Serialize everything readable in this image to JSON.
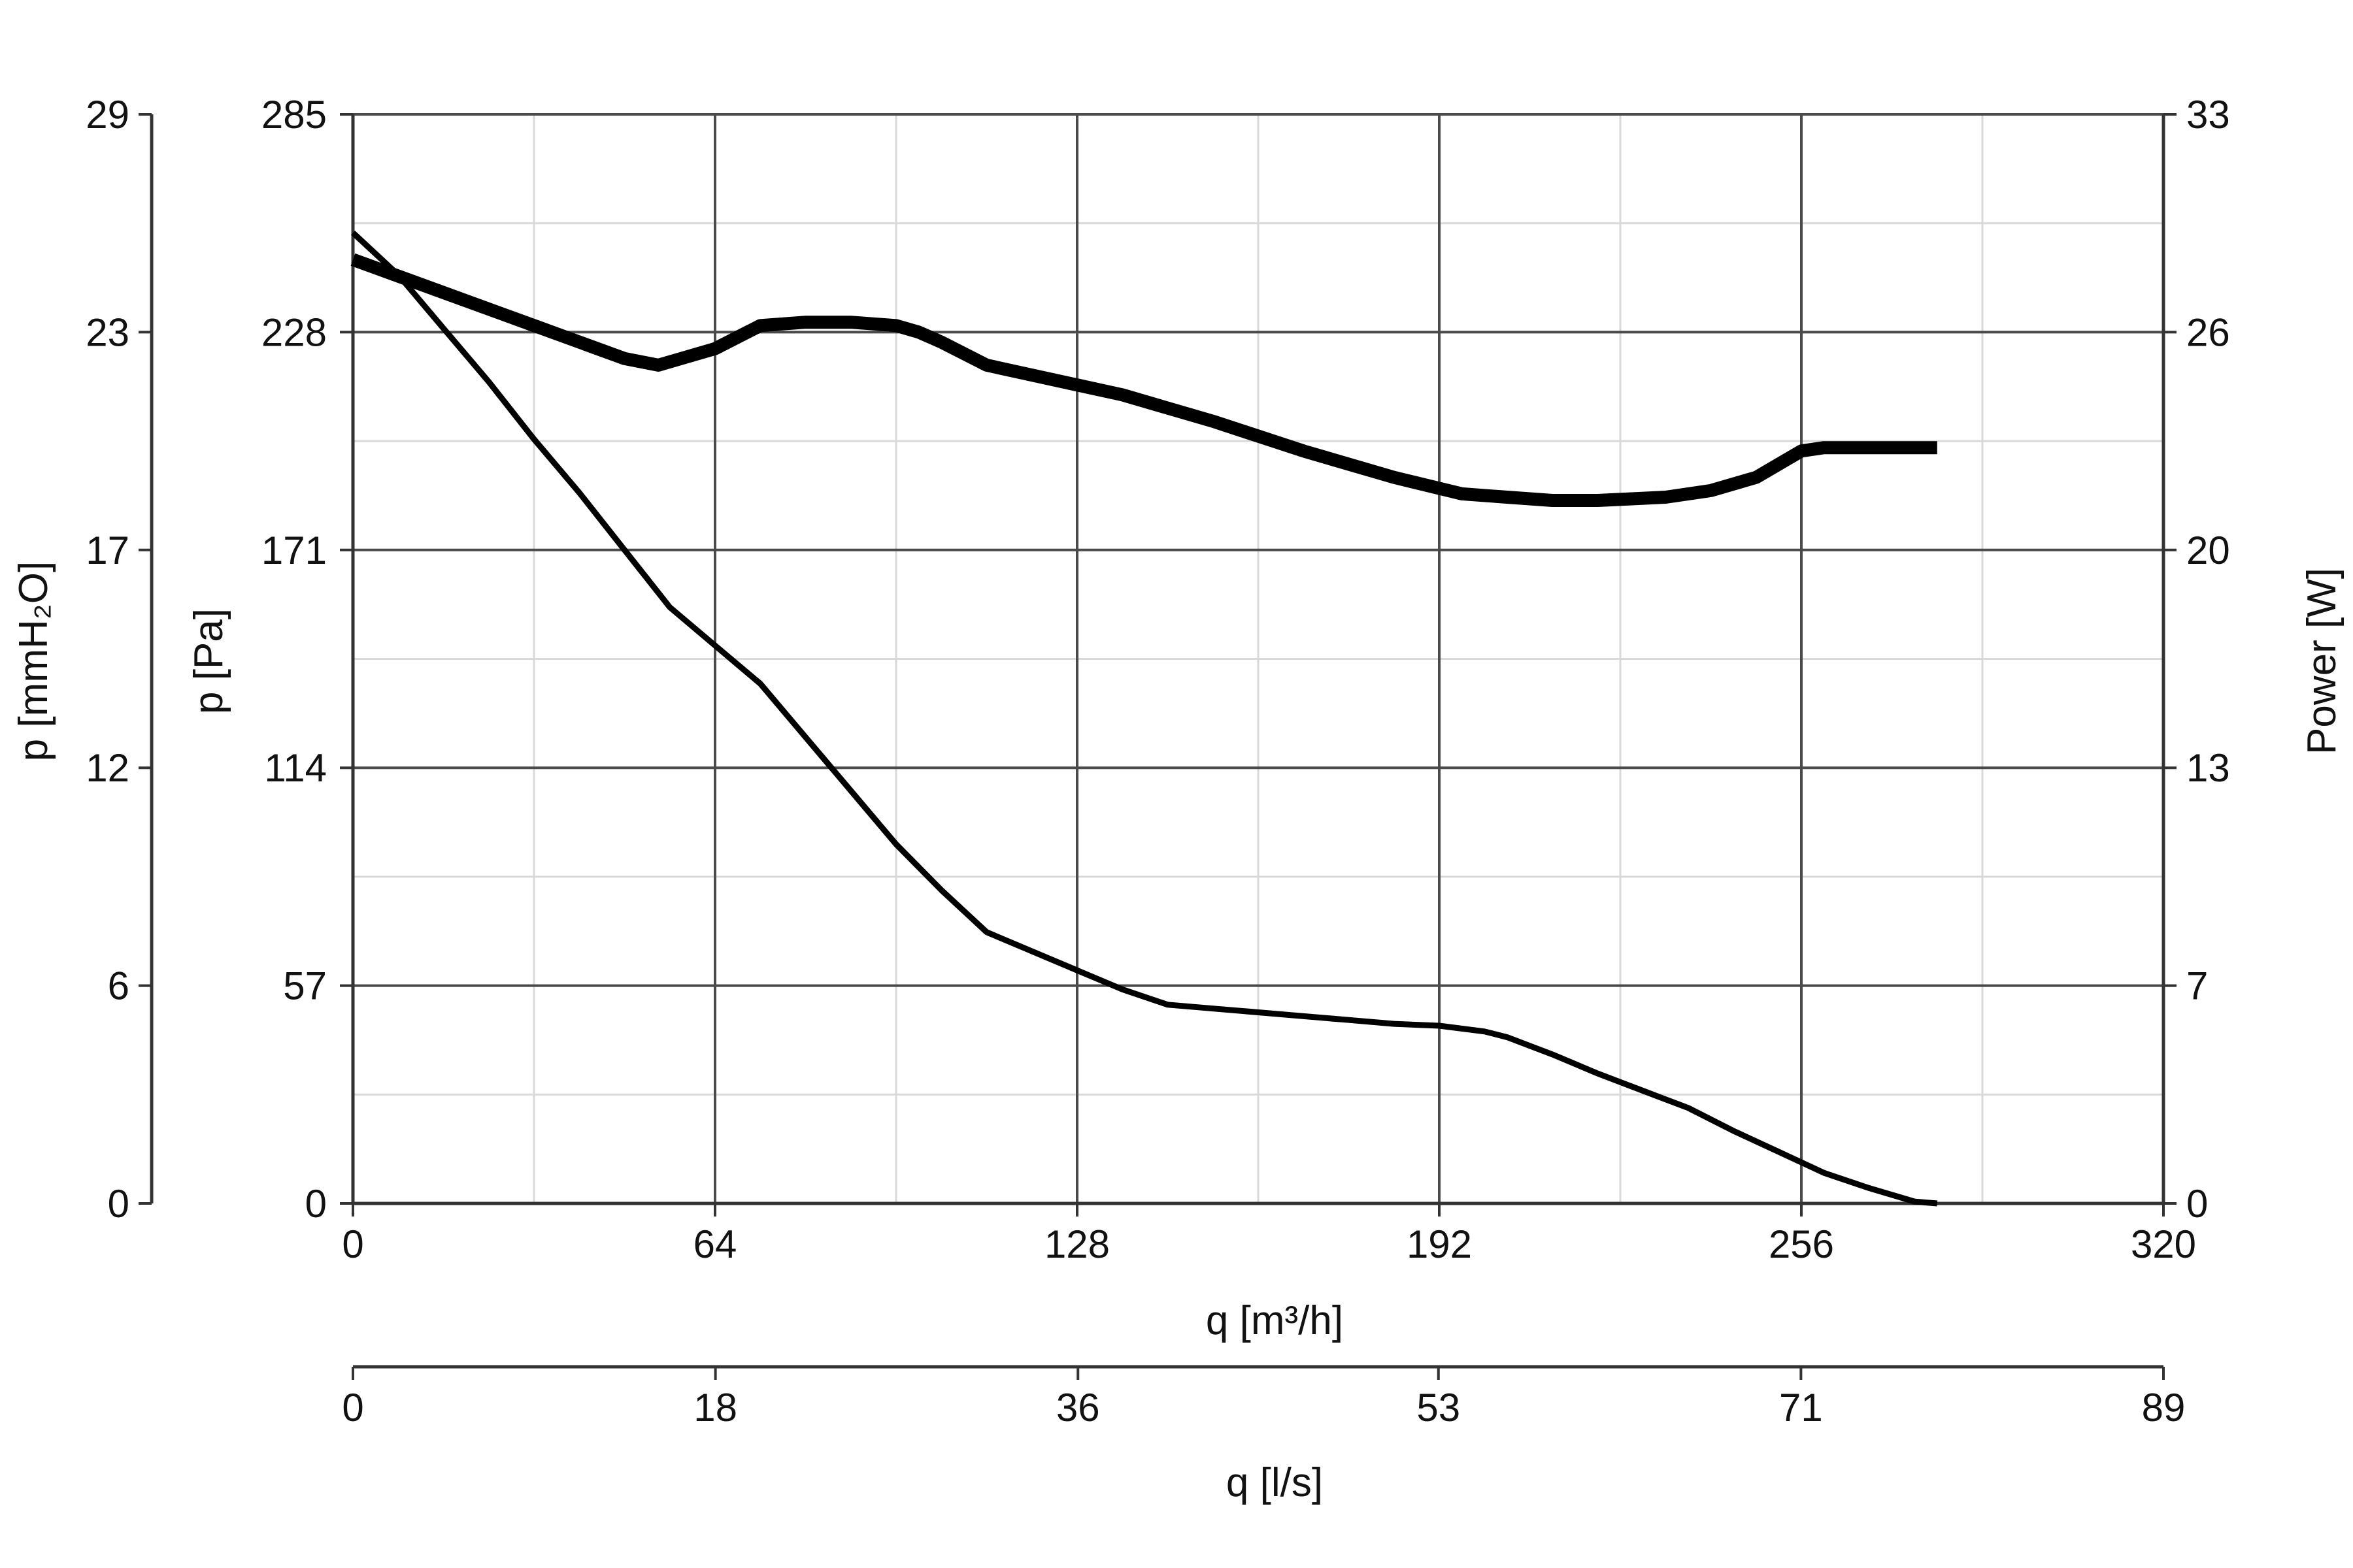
{
  "chart_data": {
    "type": "line",
    "title": "",
    "grid": true,
    "legend": "none",
    "x_axis": {
      "label": "q [m³/h]",
      "range": [
        0,
        320
      ],
      "ticks": [
        "0",
        "64",
        "128",
        "192",
        "256",
        "320"
      ],
      "tick_values": [
        0,
        64,
        128,
        192,
        256,
        320
      ]
    },
    "x2_axis": {
      "label": "q [l/s]",
      "range": [
        0,
        88.9
      ],
      "ticks": [
        "0",
        "18",
        "36",
        "53",
        "71",
        "89"
      ],
      "tick_values": [
        0,
        17.8,
        35.6,
        53.3,
        71.1,
        88.9
      ]
    },
    "y_axis": {
      "label": "p [Pa]",
      "range": [
        0,
        285
      ],
      "ticks": [
        "0",
        "57",
        "114",
        "171",
        "228",
        "285"
      ],
      "tick_values": [
        0,
        57,
        114,
        171,
        228,
        285
      ]
    },
    "y2_axis": {
      "label": "p [mmH₂O]",
      "range": [
        0,
        29
      ],
      "ticks": [
        "0",
        "6",
        "12",
        "17",
        "23",
        "29"
      ],
      "tick_values": [
        0,
        5.8,
        11.6,
        17.4,
        23.2,
        29
      ]
    },
    "y3_axis": {
      "label": "Power [W]",
      "range": [
        0,
        33
      ],
      "ticks": [
        "0",
        "7",
        "13",
        "20",
        "26",
        "33"
      ],
      "tick_values": [
        0,
        6.6,
        13.2,
        19.8,
        26.4,
        33
      ]
    },
    "series": [
      {
        "axis": "pressure",
        "x": [
          0,
          8,
          16,
          24,
          32,
          40,
          48,
          56,
          64,
          72,
          80,
          88,
          96,
          104,
          112,
          120,
          128,
          136,
          144,
          152,
          160,
          168,
          176,
          184,
          192,
          200,
          204,
          212,
          220,
          228,
          236,
          244,
          252,
          260,
          268,
          276,
          280
        ],
        "y": [
          254,
          243,
          229,
          215,
          200,
          186,
          171,
          156,
          146,
          136,
          122,
          108,
          94,
          82,
          71,
          66,
          61,
          56,
          52,
          51,
          50,
          49,
          48,
          47,
          46.5,
          45,
          43.5,
          39,
          34,
          29.5,
          25,
          19,
          13.5,
          8,
          4,
          0.5,
          0
        ]
      },
      {
        "axis": "power",
        "x": [
          0,
          16,
          32,
          48,
          54,
          64,
          72,
          80,
          88,
          96,
          100,
          104,
          112,
          120,
          136,
          152,
          168,
          184,
          196,
          204,
          212,
          220,
          232,
          240,
          248,
          256,
          260,
          266,
          272,
          280
        ],
        "y": [
          28.6,
          27.6,
          26.6,
          25.6,
          25.4,
          25.9,
          26.6,
          26.7,
          26.7,
          26.6,
          26.4,
          26.1,
          25.4,
          25.1,
          24.5,
          23.7,
          22.8,
          22.0,
          21.5,
          21.4,
          21.3,
          21.3,
          21.4,
          21.6,
          22.0,
          22.8,
          22.9,
          22.9,
          22.9,
          22.9
        ]
      }
    ]
  }
}
